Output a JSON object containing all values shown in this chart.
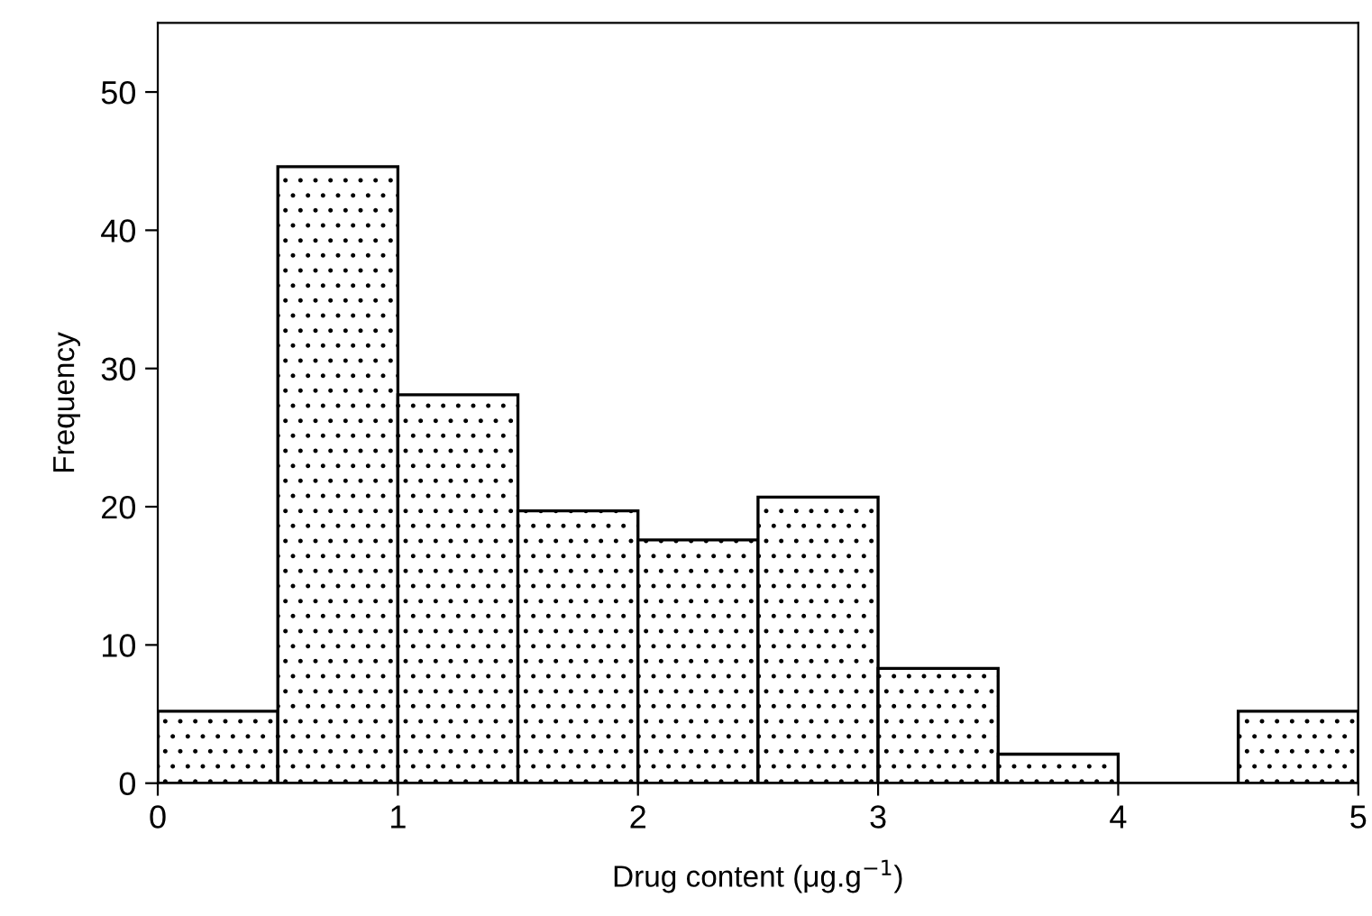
{
  "chart_data": {
    "type": "histogram",
    "xlabel": "Drug content (μg.g$^{−1}$)",
    "ylabel": "Frequency",
    "bins": [
      0,
      0.5,
      1,
      1.5,
      2,
      2.5,
      3,
      3.5,
      4,
      4.5,
      5
    ],
    "values": [
      5.2,
      44.6,
      28.1,
      19.7,
      17.6,
      20.7,
      8.3,
      2.1,
      0,
      5.2
    ],
    "xlim": [
      0,
      5
    ],
    "ylim": [
      0,
      55
    ],
    "xticks": [
      0,
      1,
      2,
      3,
      4,
      5
    ],
    "yticks": [
      0,
      10,
      20,
      30,
      40,
      50
    ],
    "grid": false,
    "legend": false
  }
}
